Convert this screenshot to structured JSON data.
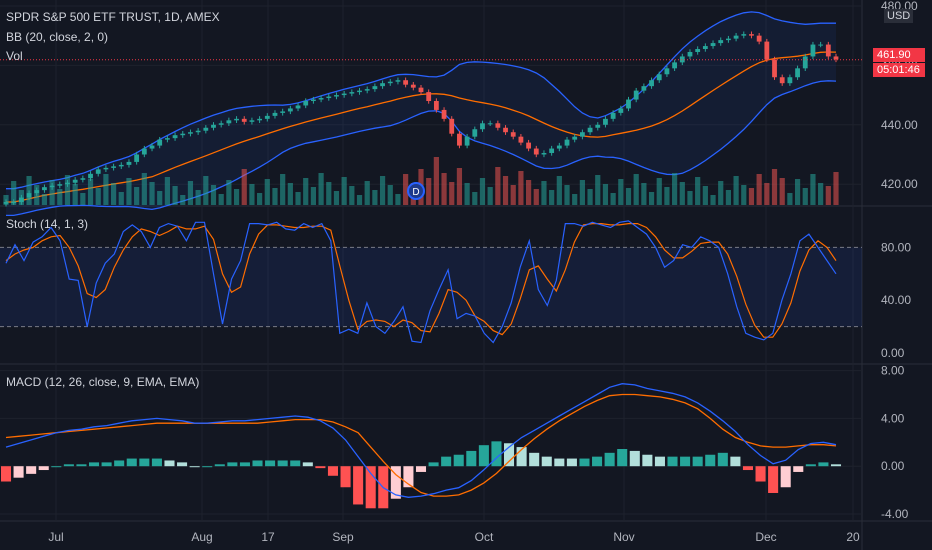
{
  "legend": {
    "main": "SPDR S&P 500 ETF TRUST, 1D, AMEX",
    "bb": "BB (20, close, 2, 0)",
    "vol": "Vol",
    "stoch": "Stoch (14, 1, 3)",
    "macd": "MACD (12, 26, close, 9, EMA, EMA)"
  },
  "price_axis": {
    "unit": "USD",
    "ticks": [
      "480.00",
      "460.00",
      "440.00",
      "420.00"
    ],
    "last_price": "461.90",
    "countdown": "05:01:46"
  },
  "stoch_axis": {
    "ticks": [
      "80.00",
      "40.00",
      "0.00"
    ]
  },
  "macd_axis": {
    "ticks": [
      "8.00",
      "4.00",
      "0.00",
      "-4.00"
    ]
  },
  "time_axis": {
    "ticks": [
      "Jul",
      "Aug",
      "17",
      "Sep",
      "Oct",
      "Nov",
      "Dec",
      "20"
    ]
  },
  "dividend_marker": "D",
  "colors": {
    "up": "#26a69a",
    "down": "#ef5350",
    "bb_band": "#2962ff",
    "bb_basis": "#ff6d00",
    "stoch_k": "#2962ff",
    "stoch_d": "#ff6d00",
    "macd": "#2962ff",
    "signal": "#ff6d00",
    "hist_up_strong": "#26a69a",
    "hist_up_weak": "#b2dfdb",
    "hist_dn_strong": "#ff5252",
    "hist_dn_weak": "#ffcdd2",
    "last_price": "#f23645"
  },
  "chart_data": {
    "type": "candlestick",
    "y_range": [
      413,
      482
    ],
    "close": [
      414,
      414,
      415.5,
      417,
      418,
      419,
      419.5,
      420,
      420.5,
      421.5,
      422,
      423.5,
      425,
      425.5,
      426,
      426.5,
      427.5,
      430,
      432,
      433,
      435,
      435.5,
      436.5,
      437,
      437.5,
      438,
      439,
      440,
      440.5,
      441.5,
      442,
      441,
      441.5,
      442,
      443,
      444,
      444.5,
      445.5,
      446.5,
      448,
      448.5,
      449,
      449.5,
      450,
      450.5,
      451,
      451.5,
      452,
      453,
      454,
      454.5,
      455,
      453.5,
      452.5,
      451,
      448,
      445,
      442,
      437,
      433,
      436,
      438.5,
      440.5,
      440.5,
      439,
      437.5,
      436,
      434,
      432,
      430,
      430.5,
      432,
      433,
      435,
      436,
      437.5,
      439,
      440,
      442,
      444,
      445.5,
      448.5,
      451.5,
      453,
      455,
      457,
      459,
      461,
      463,
      464.5,
      465.5,
      466.5,
      467.5,
      468.5,
      469,
      470,
      470.5,
      470,
      468,
      462,
      456,
      454,
      456,
      459,
      463,
      467,
      467,
      463,
      462
    ],
    "stoch_k": [
      68,
      82,
      70,
      84,
      88,
      95,
      85,
      56,
      55,
      20,
      53,
      68,
      75,
      92,
      97,
      92,
      80,
      95,
      98,
      96,
      85,
      99,
      99,
      60,
      22,
      56,
      70,
      98,
      98,
      97,
      99,
      94,
      93,
      98,
      95,
      98,
      85,
      15,
      18,
      15,
      38,
      20,
      15,
      24,
      35,
      9,
      8,
      32,
      48,
      63,
      26,
      30,
      28,
      15,
      8,
      20,
      38,
      65,
      85,
      48,
      36,
      55,
      98,
      98,
      96,
      99,
      97,
      95,
      99,
      100,
      95,
      90,
      80,
      65,
      70,
      82,
      80,
      88,
      85,
      80,
      60,
      35,
      15,
      12,
      10,
      15,
      40,
      60,
      85,
      90,
      80,
      70,
      60
    ],
    "stoch_d": [
      70,
      75,
      78,
      80,
      85,
      88,
      89,
      80,
      66,
      45,
      42,
      48,
      65,
      78,
      88,
      94,
      92,
      89,
      92,
      96,
      94,
      94,
      96,
      86,
      60,
      46,
      50,
      75,
      90,
      97,
      97,
      96,
      95,
      95,
      96,
      96,
      93,
      66,
      40,
      18,
      24,
      25,
      24,
      20,
      25,
      23,
      17,
      16,
      30,
      48,
      46,
      40,
      28,
      24,
      17,
      14,
      22,
      41,
      63,
      66,
      56,
      47,
      63,
      84,
      97,
      98,
      98,
      97,
      97,
      98,
      98,
      95,
      88,
      78,
      72,
      72,
      77,
      83,
      84,
      84,
      75,
      58,
      37,
      21,
      12,
      12,
      22,
      38,
      62,
      78,
      85,
      80,
      70
    ],
    "macd": [
      1.6,
      1.9,
      2.2,
      2.5,
      2.8,
      3.0,
      3.1,
      3.3,
      3.4,
      3.6,
      3.8,
      3.9,
      4.0,
      3.9,
      3.8,
      3.6,
      3.6,
      3.7,
      3.8,
      3.8,
      3.9,
      4.0,
      4.1,
      4.2,
      4.1,
      3.8,
      3.2,
      2.2,
      0.8,
      -0.6,
      -1.8,
      -2.4,
      -2.6,
      -2.5,
      -2.3,
      -2.0,
      -1.8,
      -1.2,
      -0.3,
      0.7,
      1.6,
      2.4,
      3.0,
      3.6,
      4.2,
      4.8,
      5.4,
      6.0,
      6.6,
      6.9,
      6.8,
      6.5,
      6.3,
      6.1,
      5.8,
      5.3,
      4.6,
      3.8,
      2.9,
      1.8,
      0.9,
      0.2,
      0.5,
      1.4,
      1.9,
      2.0,
      1.8
    ],
    "signal": [
      2.4,
      2.5,
      2.6,
      2.7,
      2.8,
      2.9,
      3.0,
      3.1,
      3.2,
      3.3,
      3.4,
      3.5,
      3.6,
      3.6,
      3.6,
      3.6,
      3.6,
      3.6,
      3.6,
      3.6,
      3.6,
      3.7,
      3.8,
      3.9,
      3.9,
      3.9,
      3.7,
      3.3,
      2.8,
      1.6,
      0.4,
      -0.7,
      -1.5,
      -2.2,
      -2.5,
      -2.5,
      -2.4,
      -2.0,
      -1.4,
      -0.6,
      0.4,
      1.4,
      2.3,
      3.1,
      3.8,
      4.4,
      5.0,
      5.5,
      5.9,
      6.0,
      6.0,
      5.9,
      5.8,
      5.6,
      5.3,
      4.8,
      4.0,
      3.1,
      2.4,
      2.0,
      1.7,
      1.6,
      1.6,
      1.7,
      1.8,
      1.8,
      1.7
    ],
    "macd_range": [
      -4.5,
      8.3
    ],
    "stoch_range": [
      -6,
      106
    ],
    "stoch_levels": [
      80,
      20
    ]
  }
}
